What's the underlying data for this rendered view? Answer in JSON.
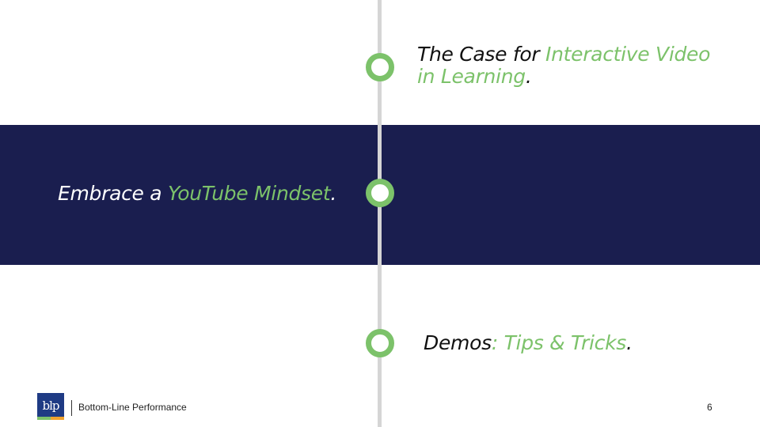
{
  "colors": {
    "accent_green": "#7cc26a",
    "band_navy": "#1a1e4f",
    "timeline_gray": "#d5d5d5",
    "logo_blue": "#1f3b84",
    "logo_orange": "#f0a22e"
  },
  "topics": [
    {
      "prefix": "The Case for ",
      "highlight": "Interactive Video",
      "highlight_line2": "in Learning",
      "suffix": "."
    },
    {
      "prefix": "Embrace a ",
      "highlight": "YouTube Mindset",
      "suffix": "."
    },
    {
      "prefix": "Demos",
      "colon": ":",
      "highlight": " Tips & Tricks",
      "suffix": "."
    }
  ],
  "footer": {
    "logo_text": "blp",
    "company": "Bottom-Line Performance",
    "page_number": "6"
  }
}
